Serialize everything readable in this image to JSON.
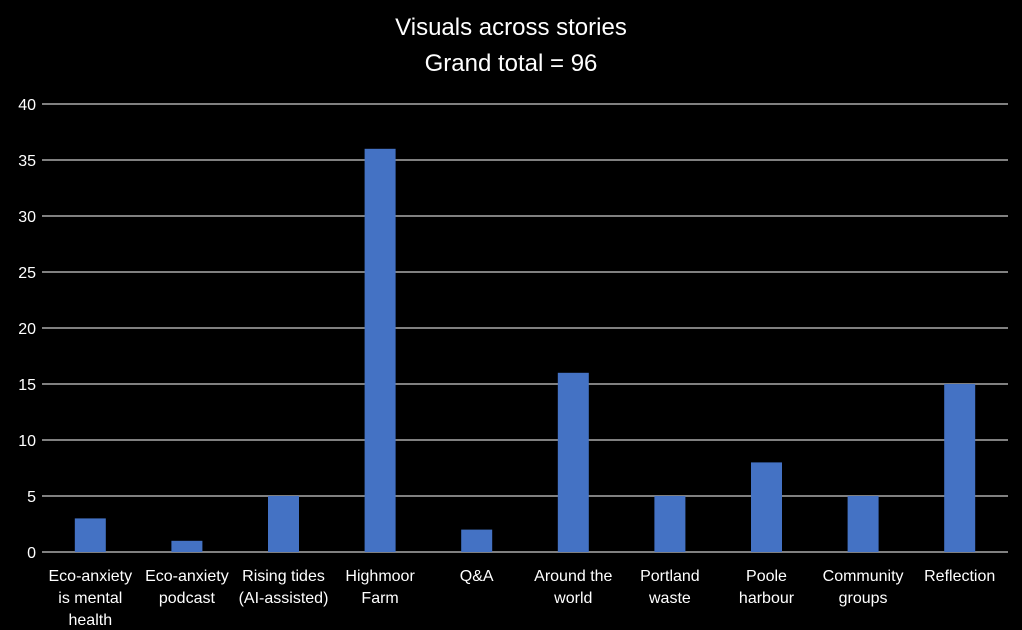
{
  "chart_data": {
    "type": "bar",
    "title": "Visuals across stories",
    "subtitle": "Grand total = 96",
    "categories": [
      [
        "Eco-anxiety",
        "is mental",
        "health"
      ],
      [
        "Eco-anxiety",
        "podcast"
      ],
      [
        "Rising tides",
        "(AI-assisted)"
      ],
      [
        "Highmoor",
        "Farm"
      ],
      [
        "Q&A"
      ],
      [
        "Around the",
        "world"
      ],
      [
        "Portland",
        "waste"
      ],
      [
        "Poole",
        "harbour"
      ],
      [
        "Community",
        "groups"
      ],
      [
        "Reflection"
      ]
    ],
    "values": [
      3,
      1,
      5,
      36,
      2,
      16,
      5,
      8,
      5,
      15
    ],
    "ylim": [
      0,
      40
    ],
    "yticks": [
      "0",
      "5",
      "10",
      "15",
      "20",
      "25",
      "30",
      "35",
      "40"
    ],
    "grid": true,
    "bar_color": "#4472C4",
    "grid_color": "#ffffff",
    "background": "#000000"
  }
}
